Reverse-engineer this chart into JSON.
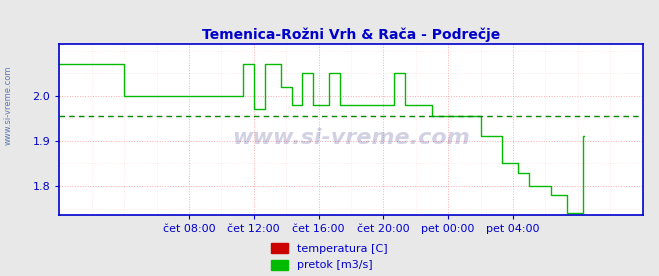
{
  "title": "Temenica-Rožni Vrh & Rača - Podrečje",
  "title_color": "#0000cc",
  "bg_color": "#e8e8e8",
  "plot_bg_color": "#ffffff",
  "grid_color_major": "#ffaaaa",
  "grid_color_minor": "#ffdddd",
  "axis_color": "#0000cc",
  "watermark": "www.si-vreme.com",
  "watermark_color": "#000066",
  "ylim": [
    1.735,
    2.115
  ],
  "yticks": [
    1.8,
    1.9,
    2.0
  ],
  "avg_line_value": 1.955,
  "avg_line_color": "#008800",
  "pretok_color": "#00bb00",
  "temp_color": "#cc0000",
  "legend_labels": [
    "temperatura [C]",
    "pretok [m3/s]"
  ],
  "xtick_labels": [
    "čet 08:00",
    "čet 12:00",
    "čet 16:00",
    "čet 20:00",
    "pet 00:00",
    "pet 04:00"
  ],
  "xtick_positions": [
    96,
    144,
    192,
    240,
    288,
    336
  ],
  "total_points": 432,
  "pretok_data": [
    2.07,
    2.07,
    2.07,
    2.07,
    2.07,
    2.07,
    2.07,
    2.07,
    2.07,
    2.07,
    2.07,
    2.07,
    2.07,
    2.07,
    2.07,
    2.07,
    2.07,
    2.07,
    2.07,
    2.07,
    2.07,
    2.07,
    2.07,
    2.07,
    2.07,
    2.07,
    2.07,
    2.07,
    2.07,
    2.07,
    2.07,
    2.07,
    2.07,
    2.07,
    2.07,
    2.07,
    2.07,
    2.07,
    2.07,
    2.07,
    2.07,
    2.07,
    2.07,
    2.07,
    2.07,
    2.07,
    2.07,
    2.07,
    2.0,
    2.0,
    2.0,
    2.0,
    2.0,
    2.0,
    2.0,
    2.0,
    2.0,
    2.0,
    2.0,
    2.0,
    2.0,
    2.0,
    2.0,
    2.0,
    2.0,
    2.0,
    2.0,
    2.0,
    2.0,
    2.0,
    2.0,
    2.0,
    2.0,
    2.0,
    2.0,
    2.0,
    2.0,
    2.0,
    2.0,
    2.0,
    2.0,
    2.0,
    2.0,
    2.0,
    2.0,
    2.0,
    2.0,
    2.0,
    2.0,
    2.0,
    2.0,
    2.0,
    2.0,
    2.0,
    2.0,
    2.0,
    2.0,
    2.0,
    2.0,
    2.0,
    2.0,
    2.0,
    2.0,
    2.0,
    2.0,
    2.0,
    2.0,
    2.0,
    2.0,
    2.0,
    2.0,
    2.0,
    2.0,
    2.0,
    2.0,
    2.0,
    2.0,
    2.0,
    2.0,
    2.0,
    2.0,
    2.0,
    2.0,
    2.0,
    2.0,
    2.0,
    2.0,
    2.0,
    2.0,
    2.0,
    2.0,
    2.0,
    2.0,
    2.0,
    2.0,
    2.0,
    2.07,
    2.07,
    2.07,
    2.07,
    2.07,
    2.07,
    2.07,
    2.07,
    1.97,
    1.97,
    1.97,
    1.97,
    1.97,
    1.97,
    1.97,
    1.97,
    2.07,
    2.07,
    2.07,
    2.07,
    2.07,
    2.07,
    2.07,
    2.07,
    2.07,
    2.07,
    2.07,
    2.07,
    2.02,
    2.02,
    2.02,
    2.02,
    2.02,
    2.02,
    2.02,
    2.02,
    1.98,
    1.98,
    1.98,
    1.98,
    1.98,
    1.98,
    1.98,
    1.98,
    2.05,
    2.05,
    2.05,
    2.05,
    2.05,
    2.05,
    2.05,
    2.05,
    1.98,
    1.98,
    1.98,
    1.98,
    1.98,
    1.98,
    1.98,
    1.98,
    1.98,
    1.98,
    1.98,
    1.98,
    2.05,
    2.05,
    2.05,
    2.05,
    2.05,
    2.05,
    2.05,
    2.05,
    1.98,
    1.98,
    1.98,
    1.98,
    1.98,
    1.98,
    1.98,
    1.98,
    1.98,
    1.98,
    1.98,
    1.98,
    1.98,
    1.98,
    1.98,
    1.98,
    1.98,
    1.98,
    1.98,
    1.98,
    1.98,
    1.98,
    1.98,
    1.98,
    1.98,
    1.98,
    1.98,
    1.98,
    1.98,
    1.98,
    1.98,
    1.98,
    1.98,
    1.98,
    1.98,
    1.98,
    1.98,
    1.98,
    1.98,
    1.98,
    2.05,
    2.05,
    2.05,
    2.05,
    2.05,
    2.05,
    2.05,
    2.05,
    1.98,
    1.98,
    1.98,
    1.98,
    1.98,
    1.98,
    1.98,
    1.98,
    1.98,
    1.98,
    1.98,
    1.98,
    1.98,
    1.98,
    1.98,
    1.98,
    1.98,
    1.98,
    1.98,
    1.98,
    1.955,
    1.955,
    1.955,
    1.955,
    1.955,
    1.955,
    1.955,
    1.955,
    1.955,
    1.955,
    1.955,
    1.955,
    1.955,
    1.955,
    1.955,
    1.955,
    1.955,
    1.955,
    1.955,
    1.955,
    1.955,
    1.955,
    1.955,
    1.955,
    1.955,
    1.955,
    1.955,
    1.955,
    1.955,
    1.955,
    1.955,
    1.955,
    1.955,
    1.955,
    1.955,
    1.955,
    1.91,
    1.91,
    1.91,
    1.91,
    1.91,
    1.91,
    1.91,
    1.91,
    1.91,
    1.91,
    1.91,
    1.91,
    1.91,
    1.91,
    1.91,
    1.91,
    1.85,
    1.85,
    1.85,
    1.85,
    1.85,
    1.85,
    1.85,
    1.85,
    1.85,
    1.85,
    1.85,
    1.85,
    1.83,
    1.83,
    1.83,
    1.83,
    1.83,
    1.83,
    1.83,
    1.83,
    1.8,
    1.8,
    1.8,
    1.8,
    1.8,
    1.8,
    1.8,
    1.8,
    1.8,
    1.8,
    1.8,
    1.8,
    1.8,
    1.8,
    1.8,
    1.8,
    1.78,
    1.78,
    1.78,
    1.78,
    1.78,
    1.78,
    1.78,
    1.78,
    1.78,
    1.78,
    1.78,
    1.78,
    1.74,
    1.74,
    1.74,
    1.74,
    1.74,
    1.74,
    1.74,
    1.74,
    1.74,
    1.74,
    1.74,
    1.74,
    1.91,
    1.91
  ]
}
